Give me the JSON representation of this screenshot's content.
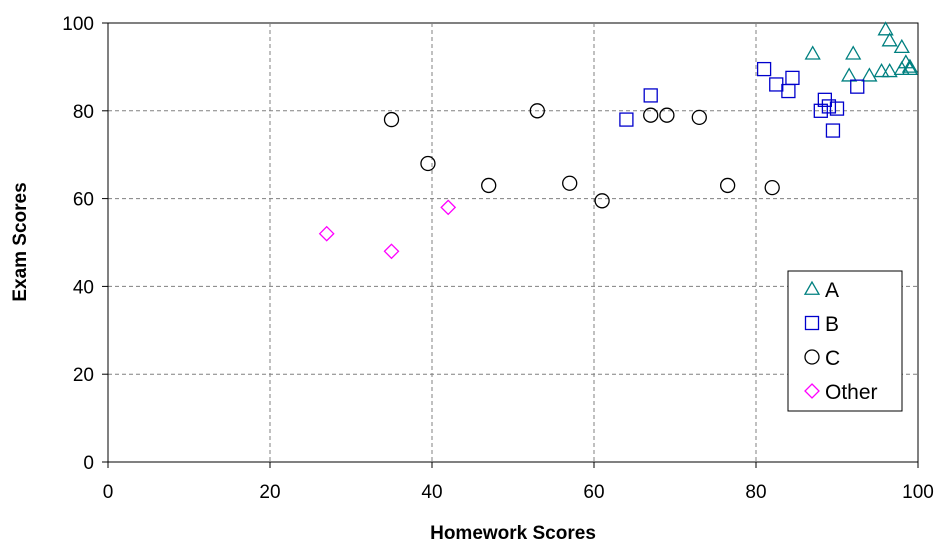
{
  "chart_data": {
    "type": "scatter",
    "title": "",
    "xlabel": "Homework Scores",
    "ylabel": "Exam Scores",
    "xlim": [
      0,
      100
    ],
    "ylim": [
      0,
      100
    ],
    "xticks": [
      0,
      20,
      40,
      60,
      80,
      100
    ],
    "yticks": [
      0,
      20,
      40,
      60,
      80,
      100
    ],
    "grid": true,
    "legend_position": "bottom-right",
    "series": [
      {
        "name": "A",
        "marker": "triangle",
        "color": "#008080",
        "points": [
          [
            87,
            93
          ],
          [
            92,
            93
          ],
          [
            96,
            98.5
          ],
          [
            96.5,
            96
          ],
          [
            98,
            94.5
          ],
          [
            91.5,
            88
          ],
          [
            94,
            88
          ],
          [
            95.5,
            89
          ],
          [
            96.5,
            89
          ],
          [
            98,
            89.5
          ],
          [
            98.5,
            91
          ],
          [
            99,
            90
          ],
          [
            99,
            89.5
          ]
        ]
      },
      {
        "name": "B",
        "marker": "square",
        "color": "#0000CC",
        "points": [
          [
            64,
            78
          ],
          [
            67,
            83.5
          ],
          [
            81,
            89.5
          ],
          [
            82.5,
            86
          ],
          [
            84,
            84.5
          ],
          [
            84.5,
            87.5
          ],
          [
            88,
            80
          ],
          [
            88.5,
            82.5
          ],
          [
            89,
            81
          ],
          [
            90,
            80.5
          ],
          [
            89.5,
            75.5
          ],
          [
            92.5,
            85.5
          ]
        ]
      },
      {
        "name": "C",
        "marker": "circle",
        "color": "#000000",
        "points": [
          [
            35,
            78
          ],
          [
            39.5,
            68
          ],
          [
            47,
            63
          ],
          [
            53,
            80
          ],
          [
            57,
            63.5
          ],
          [
            61,
            59.5
          ],
          [
            67,
            79
          ],
          [
            69,
            79
          ],
          [
            73,
            78.5
          ],
          [
            76.5,
            63
          ],
          [
            82,
            62.5
          ]
        ]
      },
      {
        "name": "Other",
        "marker": "diamond",
        "color": "#FF00FF",
        "points": [
          [
            27,
            52
          ],
          [
            35,
            48
          ],
          [
            42,
            58
          ]
        ]
      }
    ]
  }
}
